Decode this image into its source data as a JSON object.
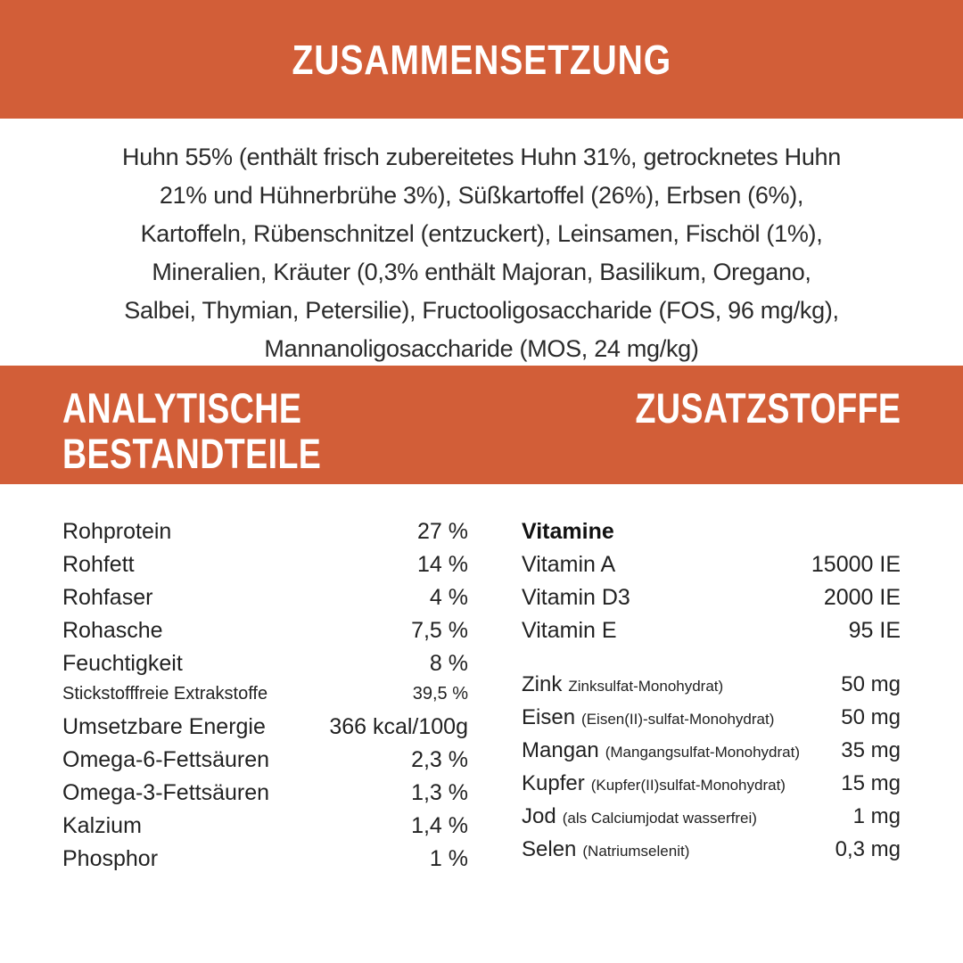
{
  "colors": {
    "accent": "#D25E38",
    "text": "#2B2B2B",
    "heading_text": "#FFFFFF"
  },
  "banner": {
    "title": "ZUSAMMENSETZUNG"
  },
  "composition": {
    "lines": [
      "Huhn 55% (enthält frisch zubereitetes Huhn 31%, getrocknetes Huhn",
      "21% und Hühnerbrühe 3%), Süßkartoffel (26%), Erbsen (6%),",
      "Kartoffeln, Rübenschnitzel (entzuckert), Leinsamen, Fischöl (1%),",
      "Mineralien, Kräuter (0,3% enthält Majoran, Basilikum, Oregano,",
      "Salbei, Thymian, Petersilie), Fructooligosaccharide (FOS, 96 mg/kg),",
      "Mannanoligosaccharide (MOS, 24 mg/kg)"
    ]
  },
  "section_headings": {
    "left": "ANALYTISCHE BESTANDTEILE",
    "right": "ZUSATZSTOFFE"
  },
  "analytical": {
    "rows": [
      {
        "label": "Rohprotein",
        "value": "27 %"
      },
      {
        "label": "Rohfett",
        "value": "14 %"
      },
      {
        "label": "Rohfaser",
        "value": "4 %"
      },
      {
        "label": "Rohasche",
        "value": "7,5 %"
      },
      {
        "label": "Feuchtigkeit",
        "value": "8 %"
      },
      {
        "label": "Stickstofffreie Extrakstoffe",
        "value": "39,5 %"
      },
      {
        "label": "Umsetzbare Energie",
        "value": "366 kcal/100g"
      },
      {
        "label": "Omega-6-Fettsäuren",
        "value": "2,3 %"
      },
      {
        "label": "Omega-3-Fettsäuren",
        "value": "1,3 %"
      },
      {
        "label": "Kalzium",
        "value": "1,4 %"
      },
      {
        "label": "Phosphor",
        "value": "1 %"
      }
    ]
  },
  "additives": {
    "vitamins_heading": "Vitamine",
    "vitamins": [
      {
        "label": "Vitamin A",
        "value": "15000 IE"
      },
      {
        "label": "Vitamin D3",
        "value": "2000 IE"
      },
      {
        "label": "Vitamin E",
        "value": "95 IE"
      }
    ],
    "minerals": [
      {
        "name": "Zink",
        "note": "Zinksulfat-Monohydrat)",
        "value": "50 mg"
      },
      {
        "name": "Eisen",
        "note": "(Eisen(II)-sulfat-Monohydrat)",
        "value": "50 mg"
      },
      {
        "name": "Mangan",
        "note": "(Mangangsulfat-Monohydrat)",
        "value": "35 mg"
      },
      {
        "name": "Kupfer",
        "note": "(Kupfer(II)sulfat-Monohydrat)",
        "value": "15 mg"
      },
      {
        "name": "Jod",
        "note": "(als Calciumjodat wasserfrei)",
        "value": "1 mg"
      },
      {
        "name": "Selen",
        "note": "(Natriumselenit)",
        "value": "0,3 mg"
      }
    ]
  }
}
